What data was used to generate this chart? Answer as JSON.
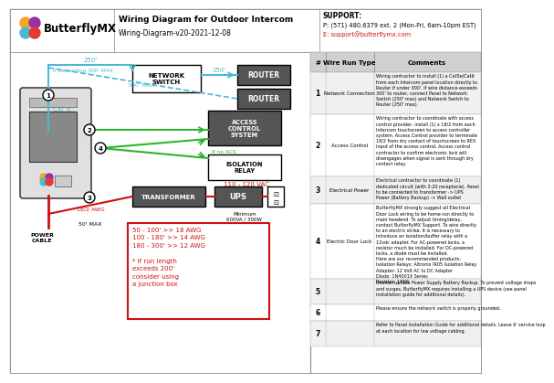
{
  "title": "Wiring Diagram for Outdoor Intercom",
  "subtitle": "Wiring-Diagram-v20-2021-12-08",
  "company": "ButterflyMX",
  "support_title": "SUPPORT:",
  "support_phone": "P: (571) 480.6379 ext. 2 (Mon-Fri, 6am-10pm EST)",
  "support_email": "E: support@butterflymx.com",
  "bg_color": "#ffffff",
  "cyan": "#4db8d4",
  "green": "#2db52d",
  "red": "#cc1111",
  "dark_gray": "#555555",
  "table_rows": [
    {
      "num": "1",
      "type": "Network Connection",
      "comment": "Wiring contractor to install (1) a Cat5e/Cat6\nfrom each Intercom panel location directly to\nRouter if under 300'. If wire distance exceeds\n300' to router, connect Panel to Network\nSwitch (250' max) and Network Switch to\nRouter (250' max)."
    },
    {
      "num": "2",
      "type": "Access Control",
      "comment": "Wiring contractor to coordinate with access\ncontrol provider, install (1) x 18/2 from each\nIntercom touchscreen to access controller\nsystem. Access Control provider to terminate\n18/2 from dry contact of touchscreen to REX\nInput of the access control. Access control\ncontractor to confirm electronic lock will\ndisengages when signal is sent through dry\ncontact relay."
    },
    {
      "num": "3",
      "type": "Electrical Power",
      "comment": "Electrical contractor to coordinate (1)\ndedicated circuit (with 3-20 receptacle). Panel\nto be connected to transformer -> UPS\nPower (Battery Backup) -> Wall outlet"
    },
    {
      "num": "4",
      "type": "Electric Door Lock",
      "comment": "ButterflyMX strongly suggest all Electrical\nDoor Lock wiring to be home-run directly to\nmain headend. To adjust timing/delay,\ncontact ButterflyMX Support. To wire directly\nto an electric strike, it is necessary to\nintroduce an isolation/buffer relay with a\n12vdc adapter. For AC-powered locks, a\nresistor much be installed. For DC-powered\nlocks, a diode must be installed.\nHere are our recommended products:\nIsolation Relays: Altronix IR05 Isolation Relay\nAdapter: 12 Volt AC to DC Adapter\nDiode: 1N4001X Series\nResistor: 1450i"
    },
    {
      "num": "5",
      "type": "",
      "comment": "Uninterruptible Power Supply Battery Backup. To prevent voltage drops\nand surges, ButterflyMX requires installing a UPS device (see panel\ninstallation guide for additional details)."
    },
    {
      "num": "6",
      "type": "",
      "comment": "Please ensure the network switch is properly grounded."
    },
    {
      "num": "7",
      "type": "",
      "comment": "Refer to Panel Installation Guide for additional details. Leave 6' service loop\nat each location for low voltage cabling."
    }
  ]
}
